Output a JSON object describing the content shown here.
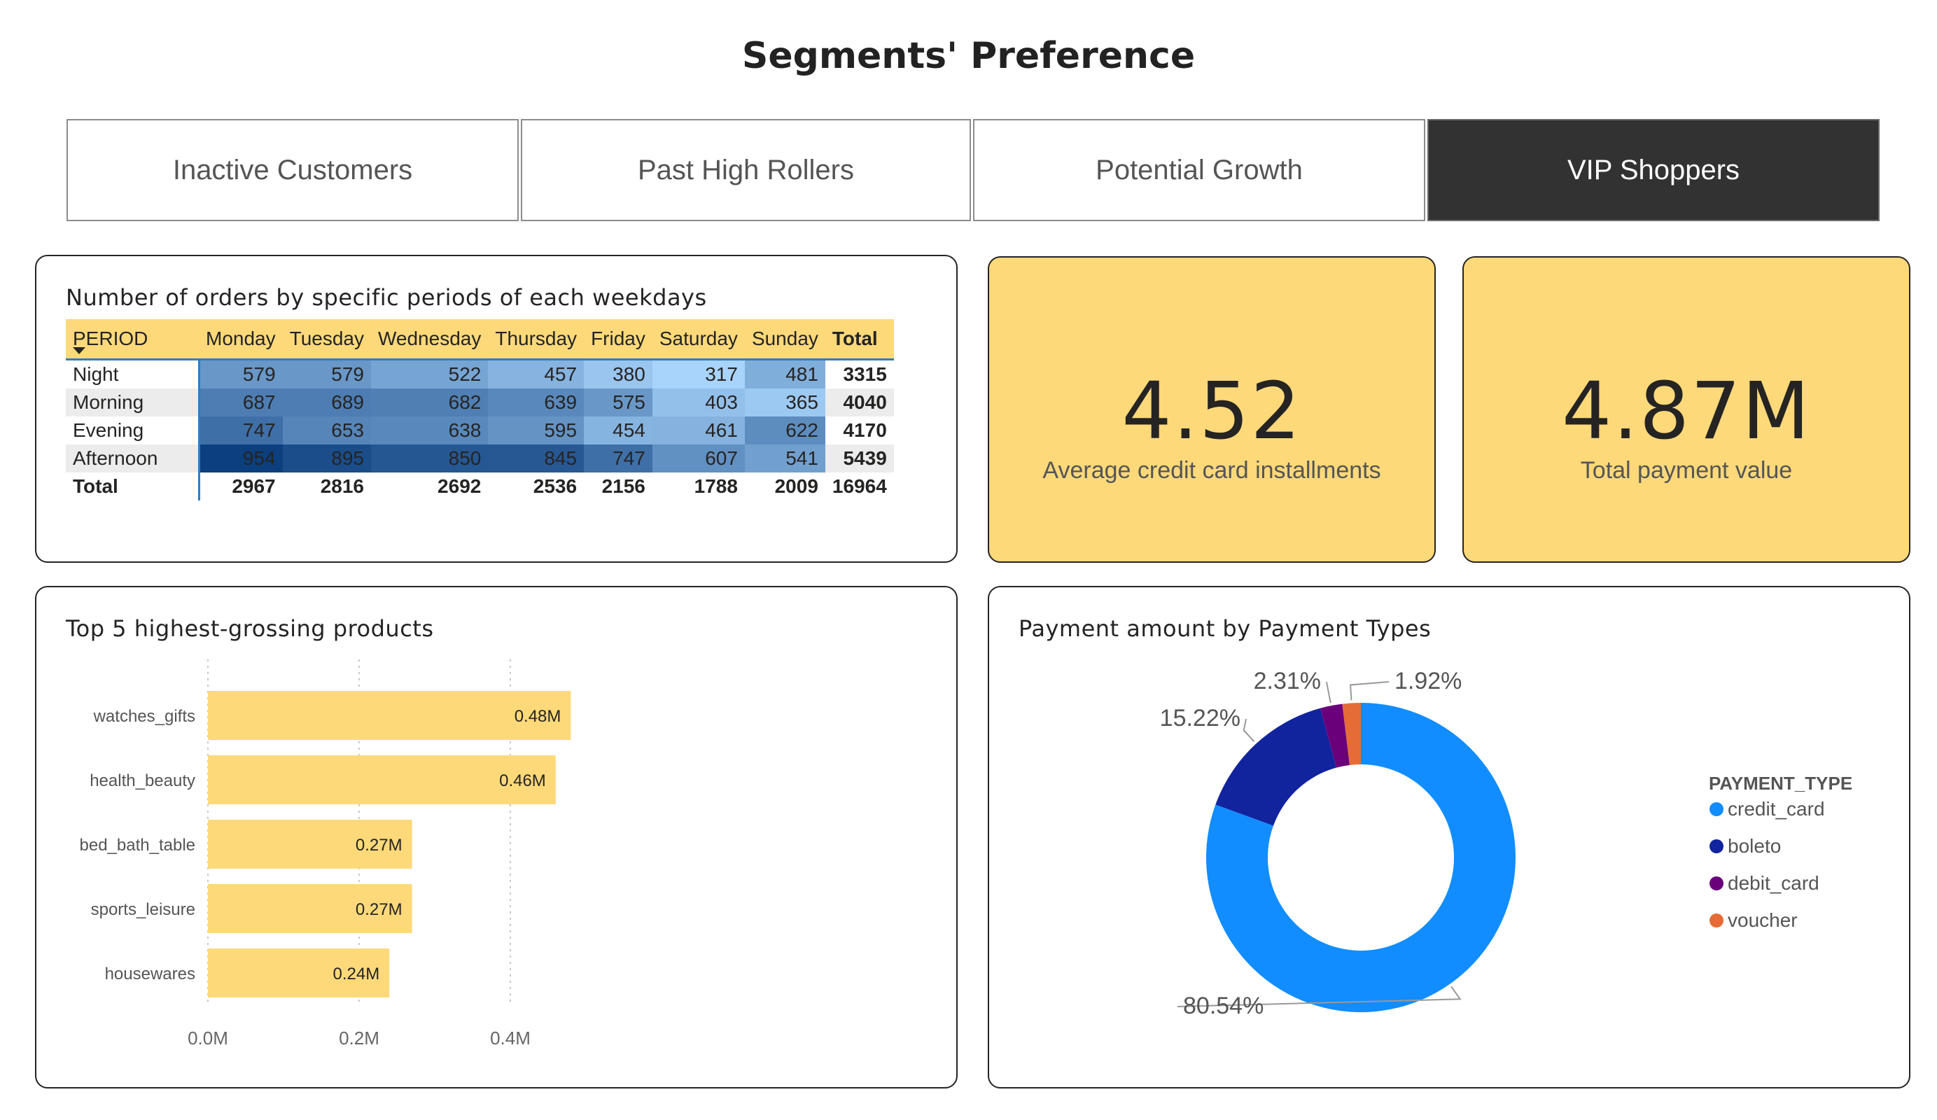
{
  "page": {
    "title": "Segments' Preference"
  },
  "tabs": [
    {
      "label": "Inactive Customers",
      "active": false
    },
    {
      "label": "Past High Rollers",
      "active": false
    },
    {
      "label": "Potential Growth",
      "active": false
    },
    {
      "label": "VIP Shoppers",
      "active": true
    }
  ],
  "matrix": {
    "title": "Number of orders by specific periods of each weekdays",
    "row_header": "PERIOD",
    "columns": [
      "Monday",
      "Tuesday",
      "Wednesday",
      "Thursday",
      "Friday",
      "Saturday",
      "Sunday"
    ],
    "total_label": "Total",
    "rows": [
      {
        "label": "Night",
        "values": [
          579,
          579,
          522,
          457,
          380,
          317,
          481
        ],
        "total": 3315
      },
      {
        "label": "Morning",
        "values": [
          687,
          689,
          682,
          639,
          575,
          403,
          365
        ],
        "total": 4040
      },
      {
        "label": "Evening",
        "values": [
          747,
          653,
          638,
          595,
          454,
          461,
          622
        ],
        "total": 4170
      },
      {
        "label": "Afternoon",
        "values": [
          954,
          895,
          850,
          845,
          747,
          607,
          541
        ],
        "total": 5439
      }
    ],
    "totals": {
      "label": "Total",
      "values": [
        2967,
        2816,
        2692,
        2536,
        2156,
        1788,
        2009
      ],
      "grand_total": 16964
    },
    "scale": {
      "min": 317,
      "max": 954,
      "low_color": "#a8d4fb",
      "high_color": "#0c3f7e"
    }
  },
  "kpis": [
    {
      "value": "4.52",
      "label": "Average credit card installments"
    },
    {
      "value": "4.87M",
      "label": "Total payment value"
    }
  ],
  "bar_chart": {
    "title": "Top 5 highest-grossing products",
    "bar_color": "#fdd97a",
    "chart_data": {
      "type": "bar",
      "orientation": "horizontal",
      "categories": [
        "watches_gifts",
        "health_beauty",
        "bed_bath_table",
        "sports_leisure",
        "housewares"
      ],
      "values": [
        0.48,
        0.46,
        0.27,
        0.27,
        0.24
      ],
      "data_labels": [
        "0.48M",
        "0.46M",
        "0.27M",
        "0.27M",
        "0.24M"
      ],
      "x_ticks": [
        0,
        0.2,
        0.4
      ],
      "x_tick_labels": [
        "0.0M",
        "0.2M",
        "0.4M"
      ],
      "xlim": [
        0,
        0.5
      ]
    }
  },
  "donut": {
    "title": "Payment amount by Payment Types",
    "legend_title": "PAYMENT_TYPE",
    "chart_data": {
      "type": "pie",
      "categories": [
        "credit_card",
        "boleto",
        "debit_card",
        "voucher"
      ],
      "values": [
        80.54,
        15.22,
        2.31,
        1.92
      ],
      "labels": [
        "80.54%",
        "15.22%",
        "2.31%",
        "1.92%"
      ],
      "colors": [
        "#118dff",
        "#12239e",
        "#6b007b",
        "#e66c37"
      ],
      "legend_position": "right"
    }
  }
}
